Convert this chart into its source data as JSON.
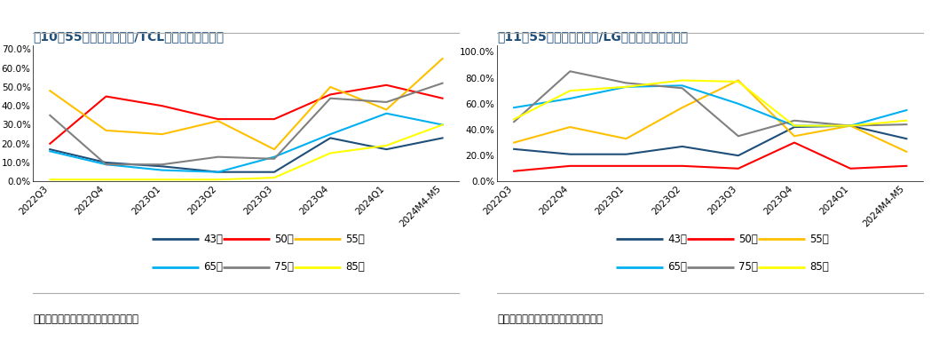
{
  "x_labels": [
    "2022Q3",
    "2022Q4",
    "2023Q1",
    "2023Q2",
    "2023Q3",
    "2023Q4",
    "2024Q1",
    "2024M4-M5"
  ],
  "chart1": {
    "title1_normal": "图10：",
    "title1_bold": "55",
    "title1_rest": "寸以上市场海信/TCL合计份额稳步提升",
    "ylim": [
      0.0,
      0.72
    ],
    "yticks": [
      0.0,
      0.1,
      0.2,
      0.3,
      0.4,
      0.5,
      0.6,
      0.7
    ],
    "series": {
      "43寸": [
        0.17,
        0.1,
        0.08,
        0.05,
        0.05,
        0.23,
        0.17,
        0.23
      ],
      "50寸": [
        0.2,
        0.45,
        0.4,
        0.33,
        0.33,
        0.46,
        0.51,
        0.44
      ],
      "55寸": [
        0.48,
        0.27,
        0.25,
        0.32,
        0.17,
        0.5,
        0.38,
        0.65
      ],
      "65寸": [
        0.16,
        0.09,
        0.06,
        0.05,
        0.13,
        0.25,
        0.36,
        0.3
      ],
      "75寸": [
        0.35,
        0.09,
        0.09,
        0.13,
        0.12,
        0.44,
        0.42,
        0.52
      ],
      "85寸": [
        0.01,
        0.01,
        0.01,
        0.01,
        0.02,
        0.15,
        0.19,
        0.3
      ]
    },
    "colors": {
      "43寸": "#1f4e79",
      "50寸": "#ff0000",
      "55寸": "#ffc000",
      "65寸": "#00b0f0",
      "75寸": "#808080",
      "85寸": "#ffff00"
    }
  },
  "chart2": {
    "title1_normal": "图11：",
    "title1_bold": "55",
    "title1_rest": "寸以上市场三星/LG合计份额呈下降趋势",
    "ylim": [
      0.0,
      1.05
    ],
    "yticks": [
      0.0,
      0.2,
      0.4,
      0.6,
      0.8,
      1.0
    ],
    "series": {
      "43寸": [
        0.25,
        0.21,
        0.21,
        0.27,
        0.2,
        0.42,
        0.43,
        0.33
      ],
      "50寸": [
        0.08,
        0.12,
        0.12,
        0.12,
        0.1,
        0.3,
        0.1,
        0.12
      ],
      "55寸": [
        0.3,
        0.42,
        0.33,
        0.57,
        0.78,
        0.35,
        0.43,
        0.23
      ],
      "65寸": [
        0.57,
        0.64,
        0.73,
        0.74,
        0.6,
        0.43,
        0.43,
        0.55
      ],
      "75寸": [
        0.46,
        0.85,
        0.76,
        0.72,
        0.35,
        0.47,
        0.43,
        0.44
      ],
      "85寸": [
        0.48,
        0.7,
        0.73,
        0.78,
        0.77,
        0.43,
        0.43,
        0.47
      ]
    },
    "colors": {
      "43寸": "#1f4e79",
      "50寸": "#ff0000",
      "55寸": "#ffc000",
      "65寸": "#00b0f0",
      "75寸": "#808080",
      "85寸": "#ffff00"
    }
  },
  "legend_entries": [
    [
      "43寸",
      "#1f4e79"
    ],
    [
      "50寸",
      "#ff0000"
    ],
    [
      "55寸",
      "#ffc000"
    ],
    [
      "65寸",
      "#00b0f0"
    ],
    [
      "75寸",
      "#808080"
    ],
    [
      "85寸",
      "#ffff00"
    ]
  ],
  "source_text": "数据来源：卖家精灵、开源证券研究所",
  "background_color": "#ffffff",
  "title_color": "#1f4e79",
  "title_fontsize": 10,
  "axis_fontsize": 7.5,
  "legend_fontsize": 8.5,
  "line_width": 1.5
}
